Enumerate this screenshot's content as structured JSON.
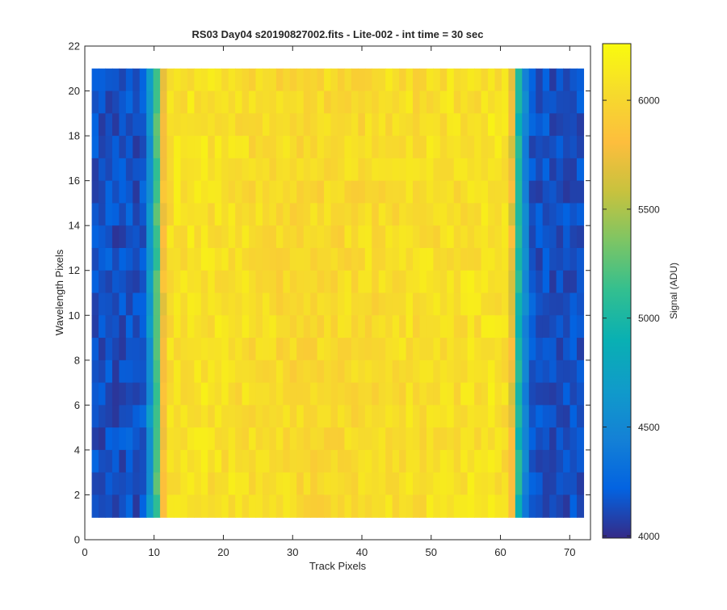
{
  "chart_data": {
    "type": "heatmap",
    "title": "RS03 Day04  s20190827002.fits - Lite-002 - int time = 30 sec",
    "xlabel": "Track Pixels",
    "ylabel": "Wavelength Pixels",
    "xlim": [
      0,
      73
    ],
    "ylim": [
      0,
      22
    ],
    "x_range": [
      1,
      72
    ],
    "y_range": [
      1,
      21
    ],
    "xticks": [
      0,
      10,
      20,
      30,
      40,
      50,
      60,
      70
    ],
    "yticks": [
      0,
      2,
      4,
      6,
      8,
      10,
      12,
      14,
      16,
      18,
      20,
      22
    ],
    "grid": false,
    "colormap": "parula",
    "colorbar": {
      "label": "Signal (ADU)",
      "range": [
        3990,
        6260
      ],
      "ticks": [
        4000,
        4500,
        5000,
        5500,
        6000
      ]
    },
    "column_means": [
      4150,
      4130,
      4160,
      4120,
      4140,
      4170,
      4130,
      4180,
      4620,
      5180,
      5780,
      6040,
      6080,
      6060,
      6090,
      6070,
      6100,
      6060,
      6080,
      6050,
      6070,
      6040,
      6060,
      6030,
      6050,
      6020,
      6040,
      6010,
      6030,
      6000,
      6020,
      5990,
      6010,
      6000,
      6020,
      5990,
      6010,
      6030,
      6000,
      6020,
      6040,
      6010,
      6030,
      6050,
      6020,
      6040,
      6060,
      6030,
      6050,
      6070,
      6040,
      6060,
      6080,
      6050,
      6070,
      6090,
      6060,
      6080,
      6100,
      6070,
      6050,
      5720,
      5000,
      4480,
      4170,
      4140,
      4160,
      4130,
      4150,
      4120,
      4160,
      4140
    ],
    "noise_amplitude": 100
  }
}
